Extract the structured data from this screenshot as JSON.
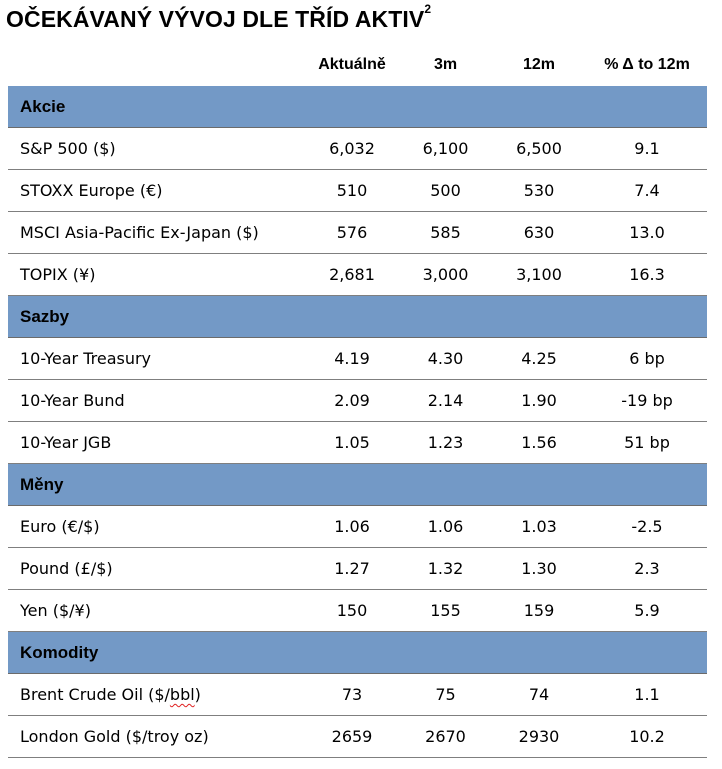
{
  "title": "OČEKÁVANÝ VÝVOJ DLE TŘÍD AKTIV",
  "title_superscript": "2",
  "columns": [
    "",
    "Aktuálně",
    "3m",
    "12m",
    "% Δ to 12m"
  ],
  "sections": [
    {
      "label": "Akcie",
      "rows": [
        {
          "name": "S&P 500 ($)",
          "current": "6,032",
          "m3": "6,100",
          "m12": "6,500",
          "change": "9.1"
        },
        {
          "name": "STOXX Europe (€)",
          "current": "510",
          "m3": "500",
          "m12": "530",
          "change": "7.4"
        },
        {
          "name": "MSCI Asia-Pacific Ex-Japan ($)",
          "current": "576",
          "m3": "585",
          "m12": "630",
          "change": "13.0"
        },
        {
          "name": "TOPIX (¥)",
          "current": "2,681",
          "m3": "3,000",
          "m12": "3,100",
          "change": "16.3"
        }
      ]
    },
    {
      "label": "Sazby",
      "rows": [
        {
          "name": "10-Year Treasury",
          "current": "4.19",
          "m3": "4.30",
          "m12": "4.25",
          "change": "6 bp"
        },
        {
          "name": "10-Year Bund",
          "current": "2.09",
          "m3": "2.14",
          "m12": "1.90",
          "change": "-19 bp"
        },
        {
          "name": "10-Year JGB",
          "current": "1.05",
          "m3": "1.23",
          "m12": "1.56",
          "change": "51 bp"
        }
      ]
    },
    {
      "label": "Měny",
      "rows": [
        {
          "name": "Euro (€/$)",
          "current": "1.06",
          "m3": "1.06",
          "m12": "1.03",
          "change": "-2.5"
        },
        {
          "name": "Pound (£/$)",
          "current": "1.27",
          "m3": "1.32",
          "m12": "1.30",
          "change": "2.3"
        },
        {
          "name": "Yen ($/¥)",
          "current": "150",
          "m3": "155",
          "m12": "159",
          "change": "5.9"
        }
      ]
    },
    {
      "label": "Komodity",
      "rows": [
        {
          "name_prefix": "Brent Crude Oil ($/",
          "name_flagged": "bbl",
          "name_suffix": ")",
          "current": "73",
          "m3": "75",
          "m12": "74",
          "change": "1.1"
        },
        {
          "name": "London Gold ($/troy oz)",
          "current": "2659",
          "m3": "2670",
          "m12": "2930",
          "change": "10.2"
        }
      ]
    }
  ],
  "colors": {
    "section_header_bg": "#7399c6",
    "spellcheck_underline": "#e02020"
  }
}
